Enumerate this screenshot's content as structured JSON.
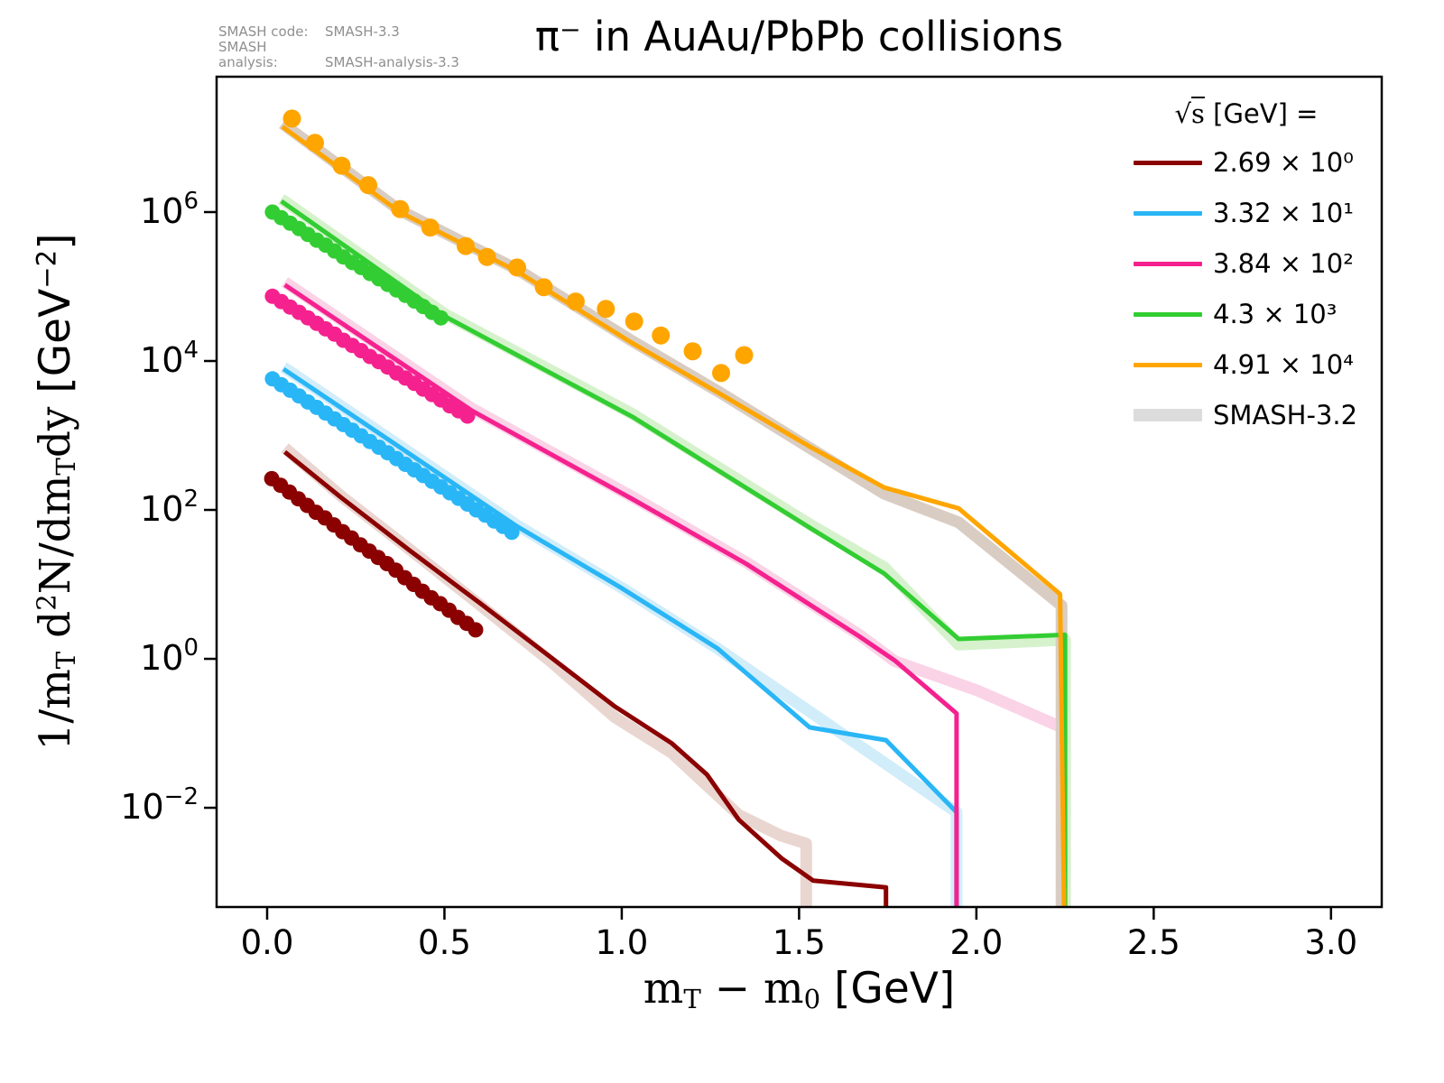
{
  "title": "π⁻ in AuAu/PbPb collisions",
  "annotations": {
    "code_label": "SMASH code:",
    "code_value": "SMASH-3.3",
    "analysis_label": "SMASH analysis:",
    "analysis_value": "SMASH-analysis-3.3"
  },
  "chart_data": {
    "type": "line",
    "title": "π⁻ in AuAu/PbPb collisions",
    "xlabel": "mT − m0 [GeV]",
    "ylabel": "1/mT d2N/dmTdy [GeV−2]",
    "x": {
      "label_parts": [
        {
          "text": "m"
        },
        {
          "text": "T",
          "sub": true
        },
        {
          "text": " − m"
        },
        {
          "text": "0",
          "sub": true
        },
        {
          "text": " ",
          "sans": true
        },
        {
          "text": "[GeV]",
          "sans": true
        }
      ],
      "lim": [
        -0.1425,
        3.143
      ],
      "ticks": [
        {
          "v": 0.0,
          "label": "0.0"
        },
        {
          "v": 0.5,
          "label": "0.5"
        },
        {
          "v": 1.0,
          "label": "1.0"
        },
        {
          "v": 1.5,
          "label": "1.5"
        },
        {
          "v": 2.0,
          "label": "2.0"
        },
        {
          "v": 2.5,
          "label": "2.5"
        },
        {
          "v": 3.0,
          "label": "3.0"
        }
      ]
    },
    "y": {
      "label_parts": [
        {
          "text": "1/m"
        },
        {
          "text": "T",
          "sub": true
        },
        {
          "text": " d"
        },
        {
          "text": "2",
          "sup": true
        },
        {
          "text": "N/dm"
        },
        {
          "text": "T",
          "sub": true
        },
        {
          "text": "dy  "
        },
        {
          "text": "[GeV",
          "sans": true
        },
        {
          "text": "−2",
          "sup": true,
          "sans": true
        },
        {
          "text": "]",
          "sans": true
        }
      ],
      "log_lim": [
        -3.333,
        7.818
      ],
      "ticks": [
        {
          "log": 6,
          "base": "10",
          "exp": "6"
        },
        {
          "log": 4,
          "base": "10",
          "exp": "4"
        },
        {
          "log": 2,
          "base": "10",
          "exp": "2"
        },
        {
          "log": 0,
          "base": "10",
          "exp": "0"
        },
        {
          "log": -2,
          "base": "10",
          "exp": "−2"
        }
      ]
    },
    "legend": {
      "header_parts": [
        {
          "text": "√"
        },
        {
          "text": "s",
          "over": true
        },
        {
          "text": "  [GeV] =",
          "sans": true
        }
      ],
      "entries": [
        {
          "label": "2.69 × 10⁰",
          "color": "#8b0000",
          "band": false
        },
        {
          "label": "3.32 × 10¹",
          "color": "#29b6f6",
          "band": false
        },
        {
          "label": "3.84 × 10²",
          "color": "#f5218e",
          "band": false
        },
        {
          "label": "4.3 × 10³",
          "color": "#32cd32",
          "band": false
        },
        {
          "label": "4.91 × 10⁴",
          "color": "#ffa500",
          "band": false
        },
        {
          "label": "SMASH-3.2",
          "color": "#dcdcdc",
          "band": true
        }
      ]
    },
    "series": [
      {
        "id": "sqrts-2.69",
        "legend_label": "2.69 × 10⁰",
        "color": "#8b0000",
        "band_color": "#ead6d1",
        "marker_size": 8.5,
        "line": [
          [
            0.05,
            600
          ],
          [
            0.21,
            145
          ],
          [
            0.4,
            29
          ],
          [
            0.6,
            5.6
          ],
          [
            0.8,
            1.05
          ],
          [
            0.98,
            0.23
          ],
          [
            1.14,
            0.074
          ],
          [
            1.24,
            0.028
          ],
          [
            1.33,
            0.0069
          ],
          [
            1.45,
            0.0021
          ],
          [
            1.54,
            0.00105
          ],
          [
            1.745,
            0.00085
          ],
          [
            1.745,
            4e-05
          ]
        ],
        "band": [
          [
            0.05,
            680
          ],
          [
            0.21,
            152
          ],
          [
            0.4,
            30
          ],
          [
            0.6,
            5.3
          ],
          [
            0.8,
            0.92
          ],
          [
            0.98,
            0.165
          ],
          [
            1.14,
            0.055
          ],
          [
            1.33,
            0.008
          ],
          [
            1.45,
            0.0042
          ],
          [
            1.52,
            0.0033
          ],
          [
            1.52,
            4e-05
          ]
        ],
        "markers": [
          [
            0.013,
            263
          ],
          [
            0.038,
            214
          ],
          [
            0.063,
            174
          ],
          [
            0.088,
            141
          ],
          [
            0.113,
            115
          ],
          [
            0.138,
            93
          ],
          [
            0.163,
            78
          ],
          [
            0.188,
            63
          ],
          [
            0.213,
            51
          ],
          [
            0.238,
            42
          ],
          [
            0.263,
            34
          ],
          [
            0.288,
            28
          ],
          [
            0.313,
            23
          ],
          [
            0.338,
            19
          ],
          [
            0.363,
            15.5
          ],
          [
            0.388,
            12.3
          ],
          [
            0.413,
            10
          ],
          [
            0.438,
            8.1
          ],
          [
            0.463,
            6.6
          ],
          [
            0.488,
            5.5
          ],
          [
            0.513,
            4.5
          ],
          [
            0.538,
            3.6
          ],
          [
            0.563,
            3.0
          ],
          [
            0.588,
            2.45
          ]
        ]
      },
      {
        "id": "sqrts-33.2",
        "legend_label": "3.32 × 10¹",
        "color": "#29b6f6",
        "band_color": "#d2edfa",
        "marker_size": 8.5,
        "line": [
          [
            0.046,
            7800
          ],
          [
            0.35,
            830
          ],
          [
            0.705,
            60
          ],
          [
            1.0,
            8.9
          ],
          [
            1.27,
            1.38
          ],
          [
            1.53,
            0.12
          ],
          [
            1.745,
            0.081
          ],
          [
            1.944,
            0.0087
          ],
          [
            1.944,
            4e-05
          ]
        ],
        "band": [
          [
            0.046,
            8300
          ],
          [
            0.35,
            870
          ],
          [
            0.705,
            62
          ],
          [
            1.0,
            9.0
          ],
          [
            1.27,
            1.38
          ],
          [
            1.944,
            0.0087
          ],
          [
            1.944,
            4e-05
          ]
        ],
        "markers": [
          [
            0.015,
            5750
          ],
          [
            0.04,
            4800
          ],
          [
            0.065,
            4050
          ],
          [
            0.09,
            3400
          ],
          [
            0.115,
            2820
          ],
          [
            0.14,
            2380
          ],
          [
            0.165,
            2000
          ],
          [
            0.19,
            1670
          ],
          [
            0.215,
            1400
          ],
          [
            0.24,
            1180
          ],
          [
            0.265,
            990
          ],
          [
            0.29,
            830
          ],
          [
            0.315,
            695
          ],
          [
            0.34,
            585
          ],
          [
            0.365,
            490
          ],
          [
            0.39,
            410
          ],
          [
            0.415,
            345
          ],
          [
            0.44,
            290
          ],
          [
            0.465,
            242
          ],
          [
            0.49,
            204
          ],
          [
            0.515,
            170
          ],
          [
            0.54,
            143
          ],
          [
            0.565,
            120
          ],
          [
            0.59,
            100
          ],
          [
            0.615,
            85
          ],
          [
            0.64,
            71
          ],
          [
            0.665,
            60
          ],
          [
            0.69,
            50
          ]
        ]
      },
      {
        "id": "sqrts-384",
        "legend_label": "3.84 × 10²",
        "color": "#f5218e",
        "band_color": "#fad3e7",
        "marker_size": 8.5,
        "line": [
          [
            0.05,
            105000
          ],
          [
            0.35,
            11500
          ],
          [
            0.578,
            2140
          ],
          [
            1.03,
            140
          ],
          [
            1.35,
            19
          ],
          [
            1.67,
            2.0
          ],
          [
            1.77,
            0.95
          ],
          [
            1.944,
            0.185
          ],
          [
            1.944,
            4e-05
          ]
        ],
        "band": [
          [
            0.05,
            115000
          ],
          [
            0.578,
            2300
          ],
          [
            1.03,
            150
          ],
          [
            1.35,
            20
          ],
          [
            1.67,
            2.1
          ],
          [
            1.77,
            0.93
          ],
          [
            2.0,
            0.38
          ],
          [
            2.25,
            0.115
          ],
          [
            2.25,
            4e-05
          ]
        ],
        "markers": [
          [
            0.015,
            74000
          ],
          [
            0.04,
            63000
          ],
          [
            0.065,
            53000
          ],
          [
            0.09,
            45000
          ],
          [
            0.115,
            38000
          ],
          [
            0.14,
            32000
          ],
          [
            0.165,
            27000
          ],
          [
            0.19,
            23000
          ],
          [
            0.215,
            19000
          ],
          [
            0.24,
            16200
          ],
          [
            0.265,
            13800
          ],
          [
            0.29,
            11500
          ],
          [
            0.315,
            9800
          ],
          [
            0.34,
            8300
          ],
          [
            0.365,
            6900
          ],
          [
            0.39,
            5900
          ],
          [
            0.415,
            5000
          ],
          [
            0.44,
            4200
          ],
          [
            0.465,
            3550
          ],
          [
            0.49,
            3000
          ],
          [
            0.515,
            2500
          ],
          [
            0.54,
            2140
          ],
          [
            0.565,
            1820
          ]
        ]
      },
      {
        "id": "sqrts-4300",
        "legend_label": "4.3 × 10³",
        "color": "#32cd32",
        "band_color": "#d6f2cd",
        "marker_size": 8.5,
        "line": [
          [
            0.04,
            1400000.0
          ],
          [
            0.5,
            40000.0
          ],
          [
            1.03,
            1780
          ],
          [
            1.54,
            54
          ],
          [
            1.74,
            14
          ],
          [
            1.95,
            1.85
          ],
          [
            2.25,
            2.1
          ],
          [
            2.25,
            4e-05
          ]
        ],
        "band": [
          [
            0.04,
            1500000.0
          ],
          [
            0.5,
            43000.0
          ],
          [
            1.03,
            1950
          ],
          [
            1.54,
            60
          ],
          [
            1.74,
            17
          ],
          [
            1.95,
            1.55
          ],
          [
            2.25,
            1.8
          ],
          [
            2.25,
            4e-05
          ]
        ],
        "markers": [
          [
            0.015,
            1000000.0
          ],
          [
            0.04,
            840000.0
          ],
          [
            0.065,
            710000.0
          ],
          [
            0.09,
            600000.0
          ],
          [
            0.115,
            500000.0
          ],
          [
            0.14,
            420000.0
          ],
          [
            0.165,
            360000.0
          ],
          [
            0.19,
            300000.0
          ],
          [
            0.215,
            250000.0
          ],
          [
            0.24,
            210000.0
          ],
          [
            0.265,
            180000.0
          ],
          [
            0.29,
            150000.0
          ],
          [
            0.315,
            127000.0
          ],
          [
            0.34,
            107000.0
          ],
          [
            0.365,
            90000.0
          ],
          [
            0.39,
            76000.0
          ],
          [
            0.415,
            64000.0
          ],
          [
            0.44,
            54000.0
          ],
          [
            0.465,
            45000.0
          ],
          [
            0.49,
            38000.0
          ]
        ]
      },
      {
        "id": "sqrts-49100",
        "legend_label": "4.91 × 10⁴",
        "color": "#ffa500",
        "band_color": "#d9cdc3",
        "marker_size": 10,
        "line": [
          [
            0.043,
            14000000.0
          ],
          [
            0.374,
            1000000.0
          ],
          [
            0.705,
            160000.0
          ],
          [
            1.03,
            17400.0
          ],
          [
            1.28,
            3550
          ],
          [
            1.53,
            710
          ],
          [
            1.74,
            200
          ],
          [
            1.95,
            105
          ],
          [
            2.236,
            7.4
          ],
          [
            2.25,
            4e-05
          ]
        ],
        "band": [
          [
            0.043,
            15500000.0
          ],
          [
            0.374,
            1050000.0
          ],
          [
            0.705,
            170000.0
          ],
          [
            1.03,
            18500.0
          ],
          [
            1.28,
            3700
          ],
          [
            1.53,
            680
          ],
          [
            1.74,
            165
          ],
          [
            1.95,
            68
          ],
          [
            2.24,
            5.2
          ],
          [
            2.24,
            4e-05
          ]
        ],
        "markers": [
          [
            0.07,
            18000000.0
          ],
          [
            0.135,
            8500000.0
          ],
          [
            0.21,
            4200000.0
          ],
          [
            0.285,
            2300000.0
          ],
          [
            0.375,
            1100000.0
          ],
          [
            0.46,
            620000.0
          ],
          [
            0.56,
            350000.0
          ],
          [
            0.62,
            250000.0
          ],
          [
            0.705,
            180000.0
          ],
          [
            0.78,
            98000.0
          ],
          [
            0.87,
            63000.0
          ],
          [
            0.955,
            50000.0
          ],
          [
            1.035,
            34000.0
          ],
          [
            1.11,
            22000.0
          ],
          [
            1.2,
            13500.0
          ],
          [
            1.28,
            6900.0
          ],
          [
            1.345,
            12000.0
          ]
        ]
      }
    ]
  }
}
